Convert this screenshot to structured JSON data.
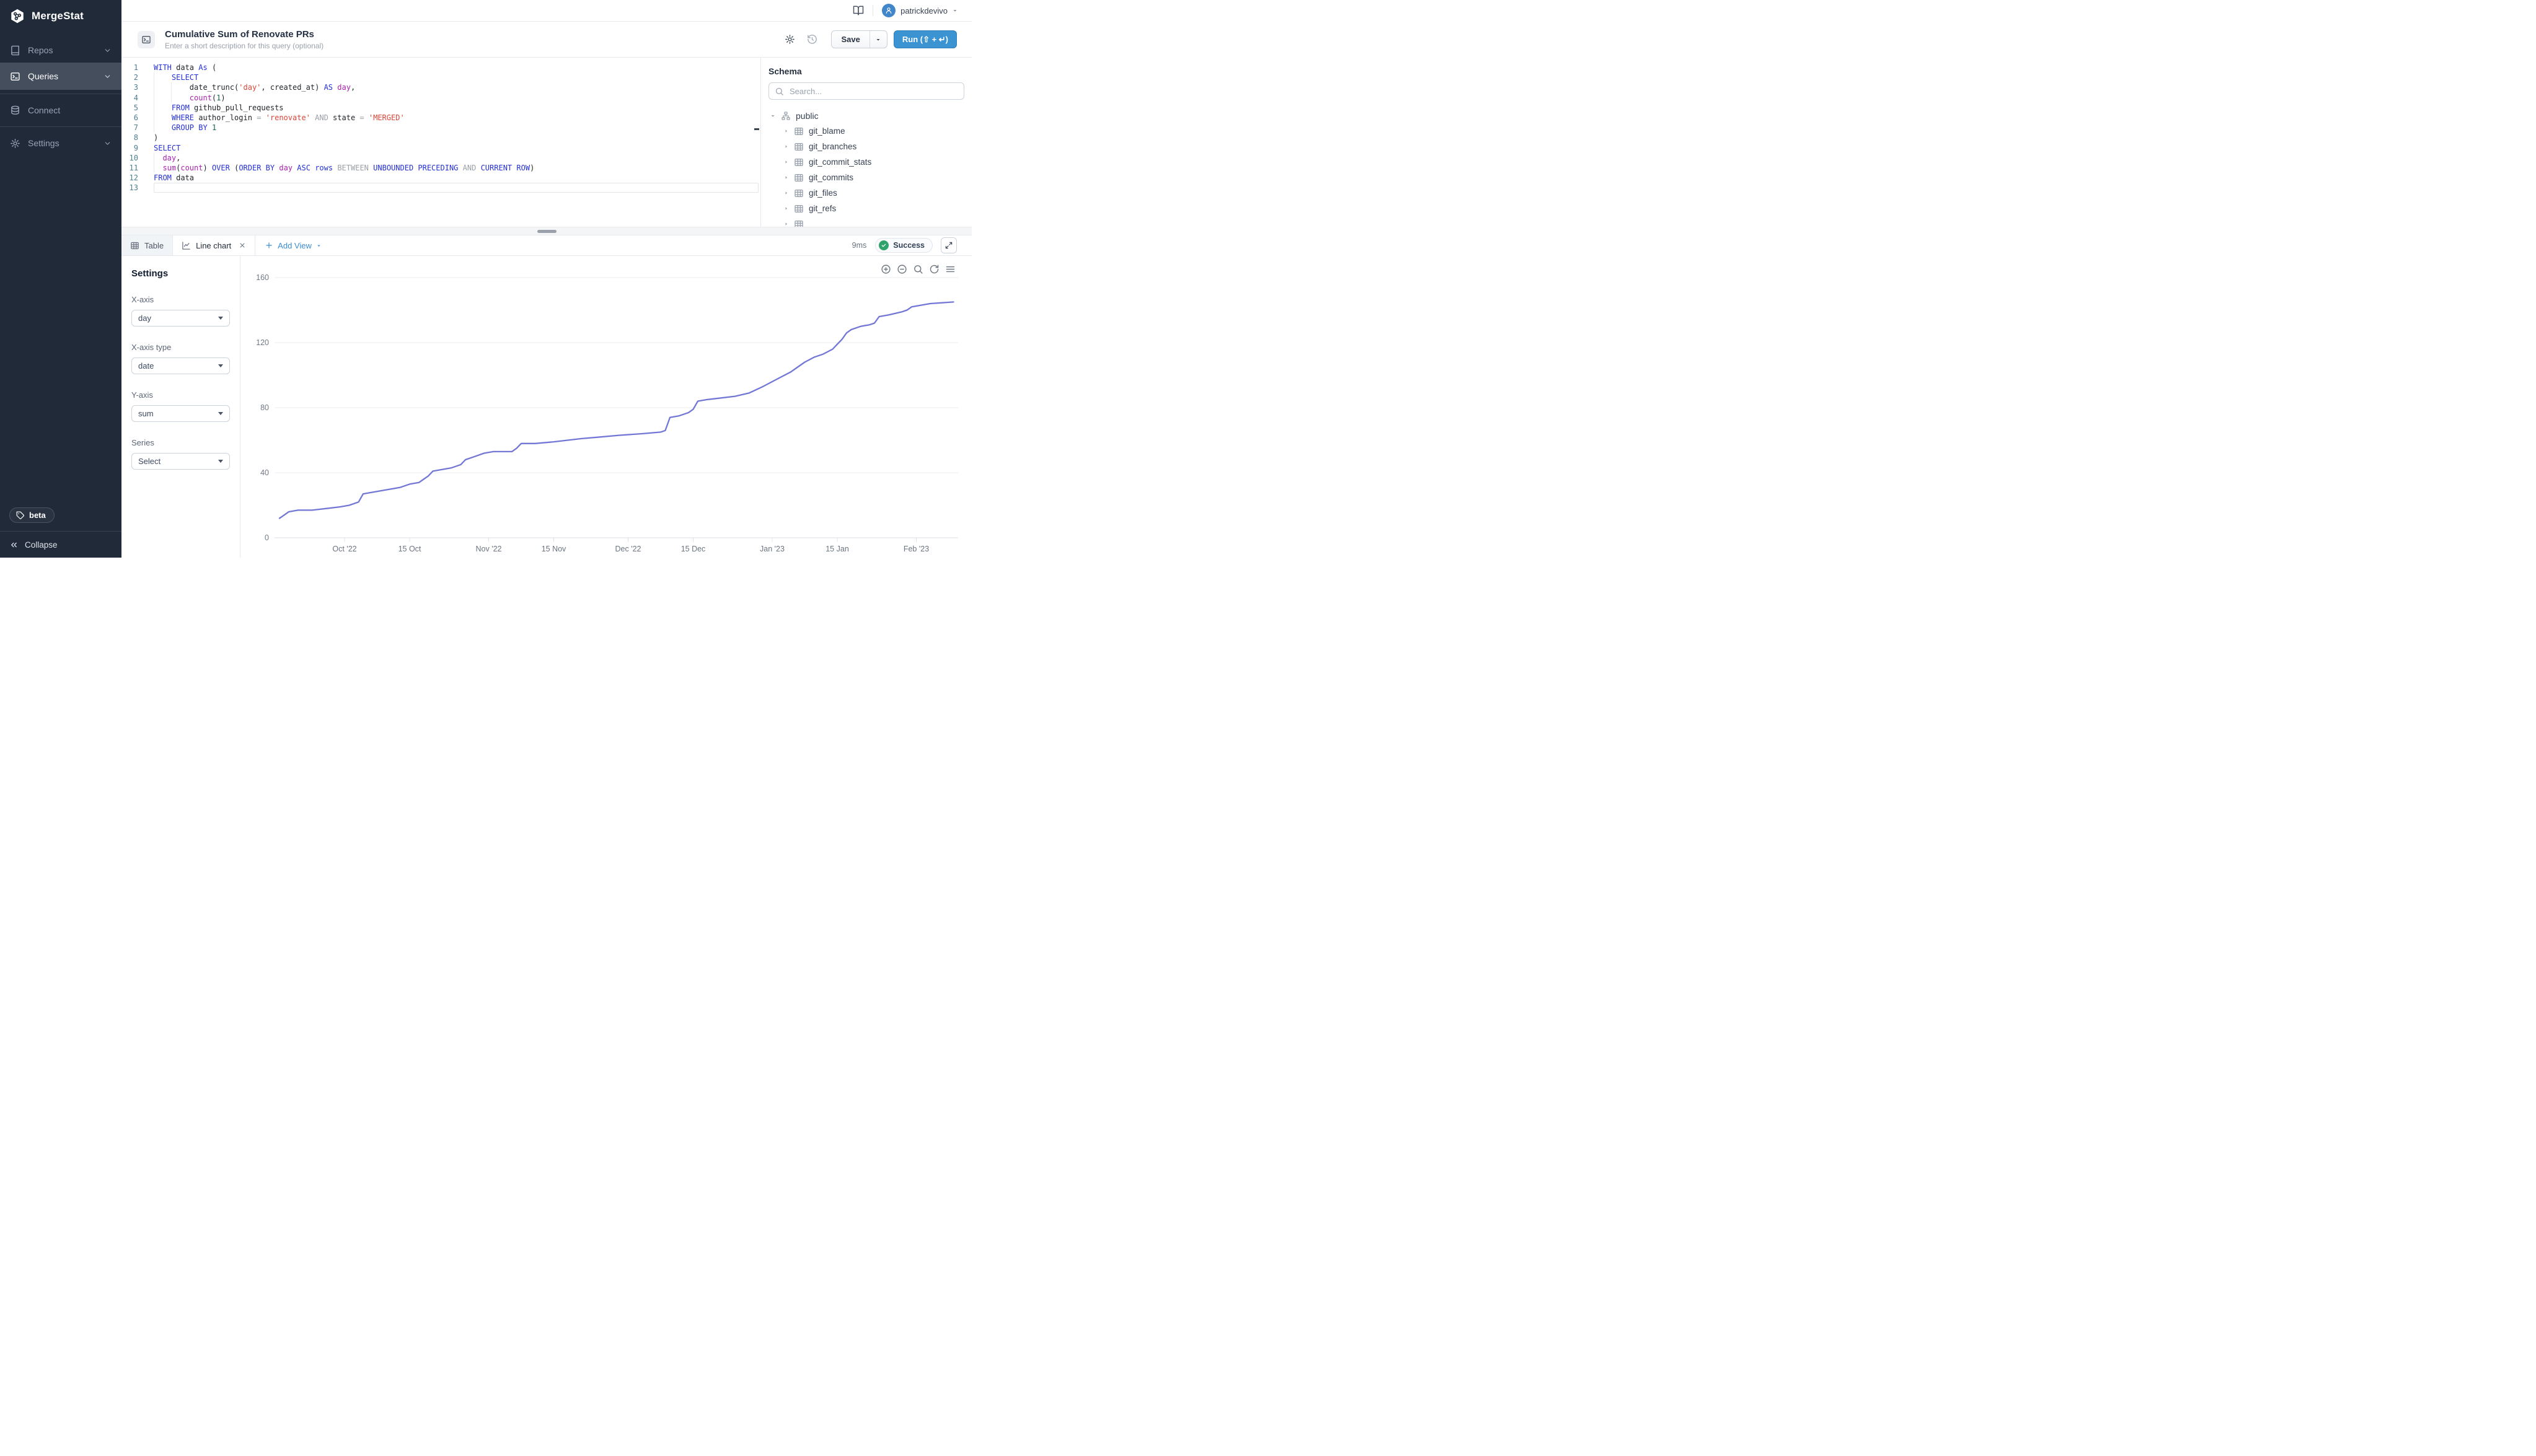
{
  "colors": {
    "sidebar_bg": "#212a39",
    "sidebar_active_bg": "#454e5d",
    "accent_blue": "#3b93d2",
    "success_green": "#2fa36b",
    "chart_line": "#7277d6"
  },
  "sidebar": {
    "logo_text": "MergeStat",
    "items": [
      {
        "label": "Repos",
        "icon": "book",
        "chevron": true,
        "active": false,
        "divider_after": false
      },
      {
        "label": "Queries",
        "icon": "terminal",
        "chevron": true,
        "active": true,
        "divider_after": true
      },
      {
        "label": "Connect",
        "icon": "database",
        "chevron": false,
        "active": false,
        "divider_after": true
      },
      {
        "label": "Settings",
        "icon": "gear",
        "chevron": true,
        "active": false,
        "divider_after": false
      }
    ],
    "beta_label": "beta",
    "collapse_label": "Collapse"
  },
  "topbar": {
    "username": "patrickdevivo"
  },
  "query_header": {
    "title": "Cumulative Sum of Renovate PRs",
    "description_placeholder": "Enter a short description for this query (optional)",
    "save_label": "Save",
    "run_label": "Run (⇧ + ↵)"
  },
  "editor": {
    "lines": [
      {
        "tokens": [
          [
            "kw",
            "WITH"
          ],
          [
            "pl",
            " data "
          ],
          [
            "kw",
            "As"
          ],
          [
            "pl",
            " ("
          ]
        ],
        "guides": []
      },
      {
        "tokens": [
          [
            "pl",
            "    "
          ],
          [
            "kw",
            "SELECT"
          ]
        ],
        "guides": [
          0
        ]
      },
      {
        "tokens": [
          [
            "pl",
            "        date_trunc("
          ],
          [
            "str",
            "'day'"
          ],
          [
            "pl",
            ", created_at) "
          ],
          [
            "kw",
            "AS"
          ],
          [
            "pl",
            " "
          ],
          [
            "fn",
            "day"
          ],
          [
            "pl",
            ","
          ]
        ],
        "guides": [
          0,
          4
        ]
      },
      {
        "tokens": [
          [
            "pl",
            "        "
          ],
          [
            "fn",
            "count"
          ],
          [
            "pl",
            "("
          ],
          [
            "num",
            "1"
          ],
          [
            "pl",
            ")"
          ]
        ],
        "guides": [
          0,
          4
        ]
      },
      {
        "tokens": [
          [
            "pl",
            "    "
          ],
          [
            "kw",
            "FROM"
          ],
          [
            "pl",
            " github_pull_requests"
          ]
        ],
        "guides": [
          0
        ]
      },
      {
        "tokens": [
          [
            "pl",
            "    "
          ],
          [
            "kw",
            "WHERE"
          ],
          [
            "pl",
            " author_login "
          ],
          [
            "op",
            "="
          ],
          [
            "pl",
            " "
          ],
          [
            "str",
            "'renovate'"
          ],
          [
            "pl",
            " "
          ],
          [
            "op",
            "AND"
          ],
          [
            "pl",
            " state "
          ],
          [
            "op",
            "="
          ],
          [
            "pl",
            " "
          ],
          [
            "str",
            "'MERGED'"
          ]
        ],
        "guides": [
          0
        ]
      },
      {
        "tokens": [
          [
            "pl",
            "    "
          ],
          [
            "kw",
            "GROUP BY"
          ],
          [
            "pl",
            " "
          ],
          [
            "num",
            "1"
          ]
        ],
        "guides": [
          0
        ]
      },
      {
        "tokens": [
          [
            "pl",
            ")"
          ]
        ],
        "guides": []
      },
      {
        "tokens": [
          [
            "kw",
            "SELECT"
          ]
        ],
        "guides": []
      },
      {
        "tokens": [
          [
            "pl",
            "  "
          ],
          [
            "fn",
            "day"
          ],
          [
            "pl",
            ","
          ]
        ],
        "guides": [
          0
        ]
      },
      {
        "tokens": [
          [
            "pl",
            "  "
          ],
          [
            "fn",
            "sum"
          ],
          [
            "pl",
            "("
          ],
          [
            "fn",
            "count"
          ],
          [
            "pl",
            ") "
          ],
          [
            "kw",
            "OVER"
          ],
          [
            "pl",
            " ("
          ],
          [
            "kw",
            "ORDER BY"
          ],
          [
            "pl",
            " "
          ],
          [
            "fn",
            "day"
          ],
          [
            "pl",
            " "
          ],
          [
            "kw",
            "ASC"
          ],
          [
            "pl",
            " "
          ],
          [
            "kw",
            "rows"
          ],
          [
            "pl",
            " "
          ],
          [
            "op",
            "BETWEEN"
          ],
          [
            "pl",
            " "
          ],
          [
            "kw",
            "UNBOUNDED PRECEDING"
          ],
          [
            "pl",
            " "
          ],
          [
            "op",
            "AND"
          ],
          [
            "pl",
            " "
          ],
          [
            "kw",
            "CURRENT ROW"
          ],
          [
            "pl",
            ")"
          ]
        ],
        "guides": [
          0
        ]
      },
      {
        "tokens": [
          [
            "kw",
            "FROM"
          ],
          [
            "pl",
            " data"
          ]
        ],
        "guides": []
      },
      {
        "tokens": [],
        "guides": [],
        "active": true
      }
    ]
  },
  "schema": {
    "title": "Schema",
    "search_placeholder": "Search...",
    "root_label": "public",
    "tables": [
      "git_blame",
      "git_branches",
      "git_commit_stats",
      "git_commits",
      "git_files",
      "git_refs"
    ],
    "has_partial_row": true
  },
  "results": {
    "tabs": [
      {
        "label": "Table",
        "icon": "table",
        "active": false,
        "closable": false
      },
      {
        "label": "Line chart",
        "icon": "line-chart",
        "active": true,
        "closable": true
      }
    ],
    "add_view_label": "Add View",
    "duration": "9ms",
    "status_label": "Success"
  },
  "settings_panel": {
    "title": "Settings",
    "fields": [
      {
        "label": "X-axis",
        "value": "day",
        "is_placeholder": false
      },
      {
        "label": "X-axis type",
        "value": "date",
        "is_placeholder": false
      },
      {
        "label": "Y-axis",
        "value": "sum",
        "is_placeholder": false
      },
      {
        "label": "Series",
        "value": "Select",
        "is_placeholder": true
      }
    ]
  },
  "chart_data": {
    "type": "line",
    "title": "",
    "xlabel": "",
    "ylabel": "",
    "ylim": [
      0,
      160
    ],
    "y_ticks": [
      0,
      40,
      80,
      120,
      160
    ],
    "x_ticks": [
      {
        "label": "Oct '22",
        "date": "2022-10-01"
      },
      {
        "label": "15 Oct",
        "date": "2022-10-15"
      },
      {
        "label": "Nov '22",
        "date": "2022-11-01"
      },
      {
        "label": "15 Nov",
        "date": "2022-11-15"
      },
      {
        "label": "Dec '22",
        "date": "2022-12-01"
      },
      {
        "label": "15 Dec",
        "date": "2022-12-15"
      },
      {
        "label": "Jan '23",
        "date": "2023-01-01"
      },
      {
        "label": "15 Jan",
        "date": "2023-01-15"
      },
      {
        "label": "Feb '23",
        "date": "2023-02-01"
      }
    ],
    "grid": true,
    "legend": false,
    "line_color": "#7277d6",
    "series": [
      {
        "name": "sum",
        "points": [
          [
            "2022-09-17",
            12
          ],
          [
            "2022-09-18",
            14
          ],
          [
            "2022-09-19",
            16
          ],
          [
            "2022-09-21",
            17
          ],
          [
            "2022-09-24",
            17
          ],
          [
            "2022-09-27",
            18
          ],
          [
            "2022-09-30",
            19
          ],
          [
            "2022-10-02",
            20
          ],
          [
            "2022-10-04",
            22
          ],
          [
            "2022-10-05",
            27
          ],
          [
            "2022-10-07",
            28
          ],
          [
            "2022-10-09",
            29
          ],
          [
            "2022-10-11",
            30
          ],
          [
            "2022-10-13",
            31
          ],
          [
            "2022-10-15",
            33
          ],
          [
            "2022-10-17",
            34
          ],
          [
            "2022-10-18",
            36
          ],
          [
            "2022-10-19",
            38
          ],
          [
            "2022-10-20",
            41
          ],
          [
            "2022-10-22",
            42
          ],
          [
            "2022-10-24",
            43
          ],
          [
            "2022-10-26",
            45
          ],
          [
            "2022-10-27",
            48
          ],
          [
            "2022-10-29",
            50
          ],
          [
            "2022-10-31",
            52
          ],
          [
            "2022-11-02",
            53
          ],
          [
            "2022-11-06",
            53
          ],
          [
            "2022-11-07",
            55
          ],
          [
            "2022-11-08",
            58
          ],
          [
            "2022-11-11",
            58
          ],
          [
            "2022-11-15",
            59
          ],
          [
            "2022-11-18",
            60
          ],
          [
            "2022-11-21",
            61
          ],
          [
            "2022-11-25",
            62
          ],
          [
            "2022-11-29",
            63
          ],
          [
            "2022-12-04",
            64
          ],
          [
            "2022-12-08",
            65
          ],
          [
            "2022-12-09",
            66
          ],
          [
            "2022-12-10",
            74
          ],
          [
            "2022-12-12",
            75
          ],
          [
            "2022-12-14",
            77
          ],
          [
            "2022-12-15",
            79
          ],
          [
            "2022-12-16",
            84
          ],
          [
            "2022-12-18",
            85
          ],
          [
            "2022-12-21",
            86
          ],
          [
            "2022-12-24",
            87
          ],
          [
            "2022-12-27",
            89
          ],
          [
            "2022-12-30",
            93
          ],
          [
            "2023-01-01",
            96
          ],
          [
            "2023-01-03",
            99
          ],
          [
            "2023-01-05",
            102
          ],
          [
            "2023-01-06",
            104
          ],
          [
            "2023-01-08",
            108
          ],
          [
            "2023-01-10",
            111
          ],
          [
            "2023-01-12",
            113
          ],
          [
            "2023-01-14",
            116
          ],
          [
            "2023-01-15",
            119
          ],
          [
            "2023-01-16",
            122
          ],
          [
            "2023-01-17",
            126
          ],
          [
            "2023-01-18",
            128
          ],
          [
            "2023-01-20",
            130
          ],
          [
            "2023-01-22",
            131
          ],
          [
            "2023-01-23",
            132
          ],
          [
            "2023-01-24",
            136
          ],
          [
            "2023-01-26",
            137
          ],
          [
            "2023-01-29",
            139
          ],
          [
            "2023-01-30",
            140
          ],
          [
            "2023-01-31",
            142
          ],
          [
            "2023-02-02",
            143
          ],
          [
            "2023-02-04",
            144
          ],
          [
            "2023-02-09",
            145
          ]
        ]
      }
    ]
  }
}
